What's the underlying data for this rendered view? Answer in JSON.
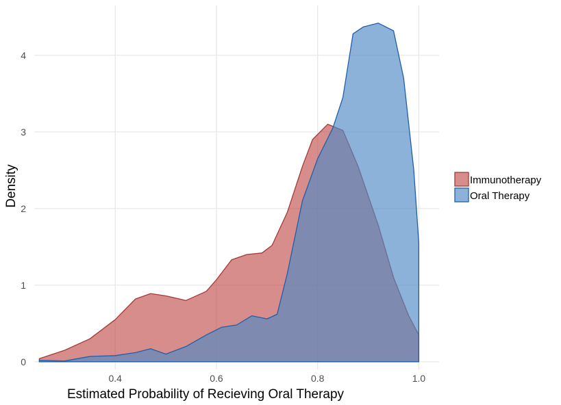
{
  "chart_data": {
    "type": "area",
    "title": "",
    "xlabel": "Estimated Probability of Recieving Oral Therapy",
    "ylabel": "Density",
    "xlim": [
      0.24,
      1.04
    ],
    "ylim": [
      -0.1,
      4.65
    ],
    "x_ticks": [
      0.4,
      0.6,
      0.8,
      1.0
    ],
    "x_tick_labels": [
      "0.4",
      "0.6",
      "0.8",
      "1.0"
    ],
    "y_ticks": [
      0,
      1,
      2,
      3,
      4
    ],
    "y_tick_labels": [
      "0",
      "1",
      "2",
      "3",
      "4"
    ],
    "grid": true,
    "legend_position": "right",
    "series": [
      {
        "name": "Immunotherapy",
        "fill": "#c0504d",
        "stroke": "#a33a36",
        "points": [
          [
            0.25,
            0.04
          ],
          [
            0.3,
            0.15
          ],
          [
            0.35,
            0.3
          ],
          [
            0.4,
            0.55
          ],
          [
            0.44,
            0.82
          ],
          [
            0.47,
            0.89
          ],
          [
            0.5,
            0.86
          ],
          [
            0.54,
            0.8
          ],
          [
            0.58,
            0.92
          ],
          [
            0.6,
            1.07
          ],
          [
            0.63,
            1.33
          ],
          [
            0.66,
            1.4
          ],
          [
            0.69,
            1.42
          ],
          [
            0.71,
            1.52
          ],
          [
            0.74,
            1.95
          ],
          [
            0.77,
            2.55
          ],
          [
            0.79,
            2.9
          ],
          [
            0.82,
            3.1
          ],
          [
            0.85,
            3.02
          ],
          [
            0.88,
            2.55
          ],
          [
            0.92,
            1.78
          ],
          [
            0.95,
            1.1
          ],
          [
            0.98,
            0.6
          ],
          [
            1.0,
            0.35
          ]
        ]
      },
      {
        "name": "Oral Therapy",
        "fill": "#4f89c5",
        "stroke": "#1f5fa8",
        "points": [
          [
            0.25,
            0.02
          ],
          [
            0.3,
            0.01
          ],
          [
            0.35,
            0.07
          ],
          [
            0.4,
            0.08
          ],
          [
            0.44,
            0.12
          ],
          [
            0.47,
            0.17
          ],
          [
            0.5,
            0.1
          ],
          [
            0.54,
            0.2
          ],
          [
            0.58,
            0.35
          ],
          [
            0.61,
            0.45
          ],
          [
            0.64,
            0.48
          ],
          [
            0.67,
            0.6
          ],
          [
            0.7,
            0.56
          ],
          [
            0.72,
            0.62
          ],
          [
            0.74,
            1.15
          ],
          [
            0.77,
            2.1
          ],
          [
            0.8,
            2.65
          ],
          [
            0.83,
            3.05
          ],
          [
            0.85,
            3.45
          ],
          [
            0.87,
            4.28
          ],
          [
            0.89,
            4.37
          ],
          [
            0.92,
            4.42
          ],
          [
            0.95,
            4.32
          ],
          [
            0.97,
            3.7
          ],
          [
            0.99,
            2.5
          ],
          [
            1.0,
            1.55
          ]
        ]
      }
    ]
  }
}
